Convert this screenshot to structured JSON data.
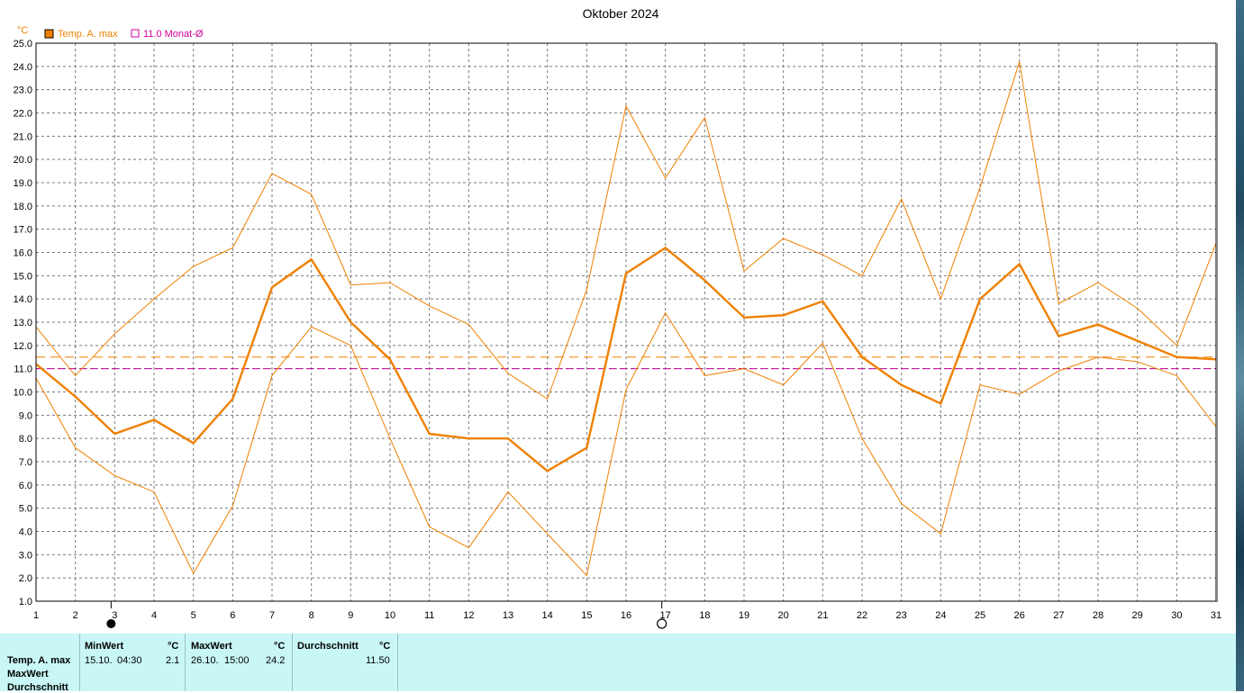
{
  "chart_data": {
    "type": "line",
    "title": "Oktober 2024",
    "ylabel": "°C",
    "ylim": [
      1.0,
      25.0
    ],
    "xlim": [
      1,
      31
    ],
    "x": [
      1,
      2,
      3,
      4,
      5,
      6,
      7,
      8,
      9,
      10,
      11,
      12,
      13,
      14,
      15,
      16,
      17,
      18,
      19,
      20,
      21,
      22,
      23,
      24,
      25,
      26,
      27,
      28,
      29,
      30,
      31
    ],
    "y_ticks": [
      "1.0",
      "2.0",
      "3.0",
      "4.0",
      "5.0",
      "6.0",
      "7.0",
      "8.0",
      "9.0",
      "10.0",
      "11.0",
      "12.0",
      "13.0",
      "14.0",
      "15.0",
      "16.0",
      "17.0",
      "18.0",
      "19.0",
      "20.0",
      "21.0",
      "22.0",
      "23.0",
      "24.0",
      "25.0"
    ],
    "x_ticks": [
      "1",
      "2",
      "3",
      "4",
      "5",
      "6",
      "7",
      "8",
      "9",
      "10",
      "11",
      "12",
      "13",
      "14",
      "15",
      "16",
      "17",
      "18",
      "19",
      "20",
      "21",
      "22",
      "23",
      "24",
      "25",
      "26",
      "27",
      "28",
      "29",
      "30",
      "31"
    ],
    "grid": true,
    "legend": [
      {
        "label": "Temp. A. max",
        "color": "#f08000",
        "swatch": "filled"
      },
      {
        "label": "11.0 Monat-Ø",
        "color": "#cc0099",
        "swatch": "hollow"
      }
    ],
    "series": [
      {
        "name": "Temp. A. max",
        "role": "mean",
        "color": "#f08000",
        "values": [
          11.2,
          9.8,
          8.2,
          8.8,
          7.8,
          9.7,
          14.5,
          15.7,
          13.0,
          11.4,
          8.2,
          8.0,
          8.0,
          6.6,
          7.6,
          15.1,
          16.2,
          14.8,
          13.2,
          13.3,
          13.9,
          11.5,
          10.3,
          9.5,
          14.0,
          15.5,
          12.4,
          12.9,
          12.2,
          11.5,
          11.4
        ]
      },
      {
        "role": "upper",
        "color": "#f08000",
        "values": [
          12.8,
          10.7,
          12.5,
          14.0,
          15.4,
          16.2,
          19.4,
          18.5,
          14.6,
          14.7,
          13.7,
          12.9,
          10.8,
          9.7,
          14.4,
          22.3,
          19.2,
          21.8,
          15.2,
          16.6,
          15.9,
          15.0,
          18.3,
          14.0,
          18.8,
          24.2,
          13.8,
          14.7,
          13.6,
          12.0,
          16.4
        ]
      },
      {
        "role": "lower",
        "color": "#f08000",
        "values": [
          10.6,
          7.6,
          6.4,
          5.7,
          2.2,
          5.1,
          10.7,
          12.8,
          12.0,
          8.0,
          4.2,
          3.3,
          5.7,
          3.9,
          2.1,
          10.1,
          13.4,
          10.7,
          11.0,
          10.3,
          12.1,
          8.0,
          5.2,
          3.9,
          10.3,
          9.9,
          10.9,
          11.5,
          11.3,
          10.7,
          8.5
        ]
      }
    ],
    "reference_lines": [
      {
        "value": 11.5,
        "color": "#f08000",
        "style": "dashed"
      },
      {
        "value": 11.0,
        "color": "#cc0099",
        "style": "dashed"
      }
    ],
    "moon_markers": [
      {
        "day": 3,
        "phase": "new"
      },
      {
        "day": 17,
        "phase": "full"
      }
    ]
  },
  "stats": {
    "row_labels": [
      "Temp. A. max",
      "MaxWert",
      "Durchschnitt"
    ],
    "min": {
      "header": "MinWert",
      "unit": "°C",
      "date": "15.10.",
      "time": "04:30",
      "value": "2.1"
    },
    "max": {
      "header": "MaxWert",
      "unit": "°C",
      "date": "26.10.",
      "time": "15:00",
      "value": "24.2"
    },
    "avg": {
      "header": "Durchschnitt",
      "unit": "°C",
      "value": "11.50"
    }
  },
  "colors": {
    "accent": "#f08000",
    "month_avg": "#cc0099",
    "panel_bg": "#c8f7f6",
    "grid": "#808080"
  }
}
